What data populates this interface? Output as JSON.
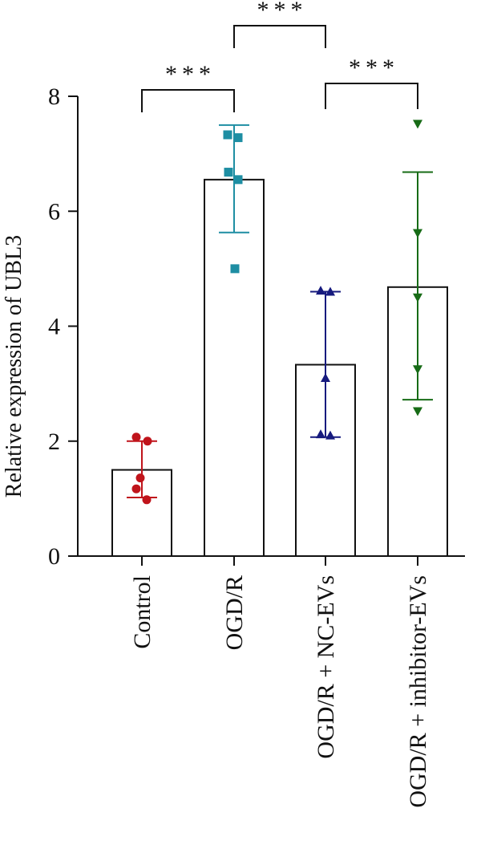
{
  "chart_data": {
    "type": "bar",
    "title": "",
    "xlabel": "",
    "ylabel": "Relative expression of UBL3",
    "ylim": [
      0,
      8
    ],
    "yticks": [
      0,
      2,
      4,
      6,
      8
    ],
    "grid": false,
    "legend": "none",
    "categories": [
      "Control",
      "OGD/R",
      "OGD/R + NC-EVs",
      "OGD/R + inhibitor-EVs"
    ],
    "series": [
      {
        "values": [
          1.5,
          6.55,
          3.33,
          4.68
        ],
        "error_upper": [
          2.0,
          7.5,
          4.6,
          6.68
        ],
        "error_lower": [
          1.02,
          5.63,
          2.07,
          2.72
        ],
        "points": [
          [
            2.07,
            2.0,
            1.36,
            1.17,
            0.98
          ],
          [
            7.33,
            7.28,
            6.68,
            6.55,
            5.0
          ],
          [
            4.62,
            4.6,
            3.1,
            2.12,
            2.1
          ],
          [
            7.52,
            5.62,
            4.5,
            3.25,
            2.52
          ]
        ],
        "markers": [
          "circle",
          "square",
          "triangle-up",
          "triangle-down"
        ],
        "colors": [
          "#c0141b",
          "#1e8ea3",
          "#161a7e",
          "#176b16"
        ]
      }
    ],
    "significance": [
      {
        "from": "Control",
        "to": "OGD/R",
        "label": "***"
      },
      {
        "from": "OGD/R",
        "to": "OGD/R + NC-EVs",
        "label": "***"
      },
      {
        "from": "OGD/R + NC-EVs",
        "to": "OGD/R + inhibitor-EVs",
        "label": "***"
      }
    ]
  }
}
